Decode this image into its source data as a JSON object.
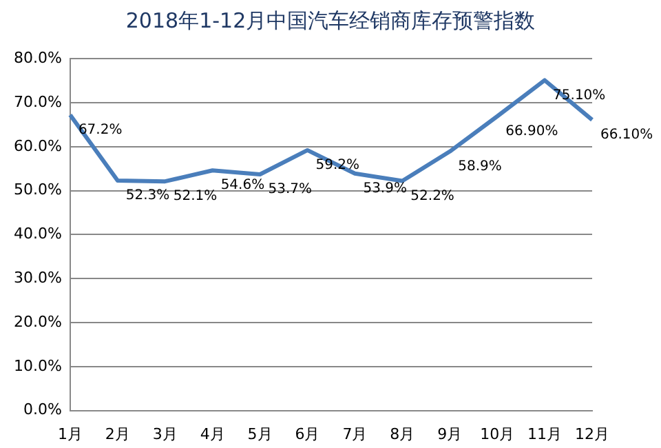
{
  "chart_data": {
    "type": "line",
    "title": "2018年1-12月中国汽车经销商库存预警指数",
    "categories": [
      "1月",
      "2月",
      "3月",
      "4月",
      "5月",
      "6月",
      "7月",
      "8月",
      "9月",
      "10月",
      "11月",
      "12月"
    ],
    "series": [
      {
        "color": "#4a7ebb",
        "values": [
          67.2,
          52.3,
          52.1,
          54.6,
          53.7,
          59.2,
          53.9,
          52.2,
          58.9,
          66.9,
          75.1,
          66.1
        ],
        "value_labels": [
          "67.2%",
          "52.3%",
          "52.1%",
          "54.6%",
          "53.7%",
          "59.2%",
          "53.9%",
          "52.2%",
          "58.9%",
          "66.90%",
          "75.10%",
          "66.10%"
        ]
      }
    ],
    "ylim": [
      0,
      80
    ],
    "yticks": [
      {
        "value": 0,
        "label": "0.0%"
      },
      {
        "value": 10,
        "label": "10.0%"
      },
      {
        "value": 20,
        "label": "20.0%"
      },
      {
        "value": 30,
        "label": "30.0%"
      },
      {
        "value": 40,
        "label": "40.0%"
      },
      {
        "value": 50,
        "label": "50.0%"
      },
      {
        "value": 60,
        "label": "60.0%"
      },
      {
        "value": 70,
        "label": "70.0%"
      },
      {
        "value": 80,
        "label": "80.0%"
      }
    ],
    "grid": "y",
    "legend": false,
    "marker": "none",
    "line_style": "solid"
  }
}
